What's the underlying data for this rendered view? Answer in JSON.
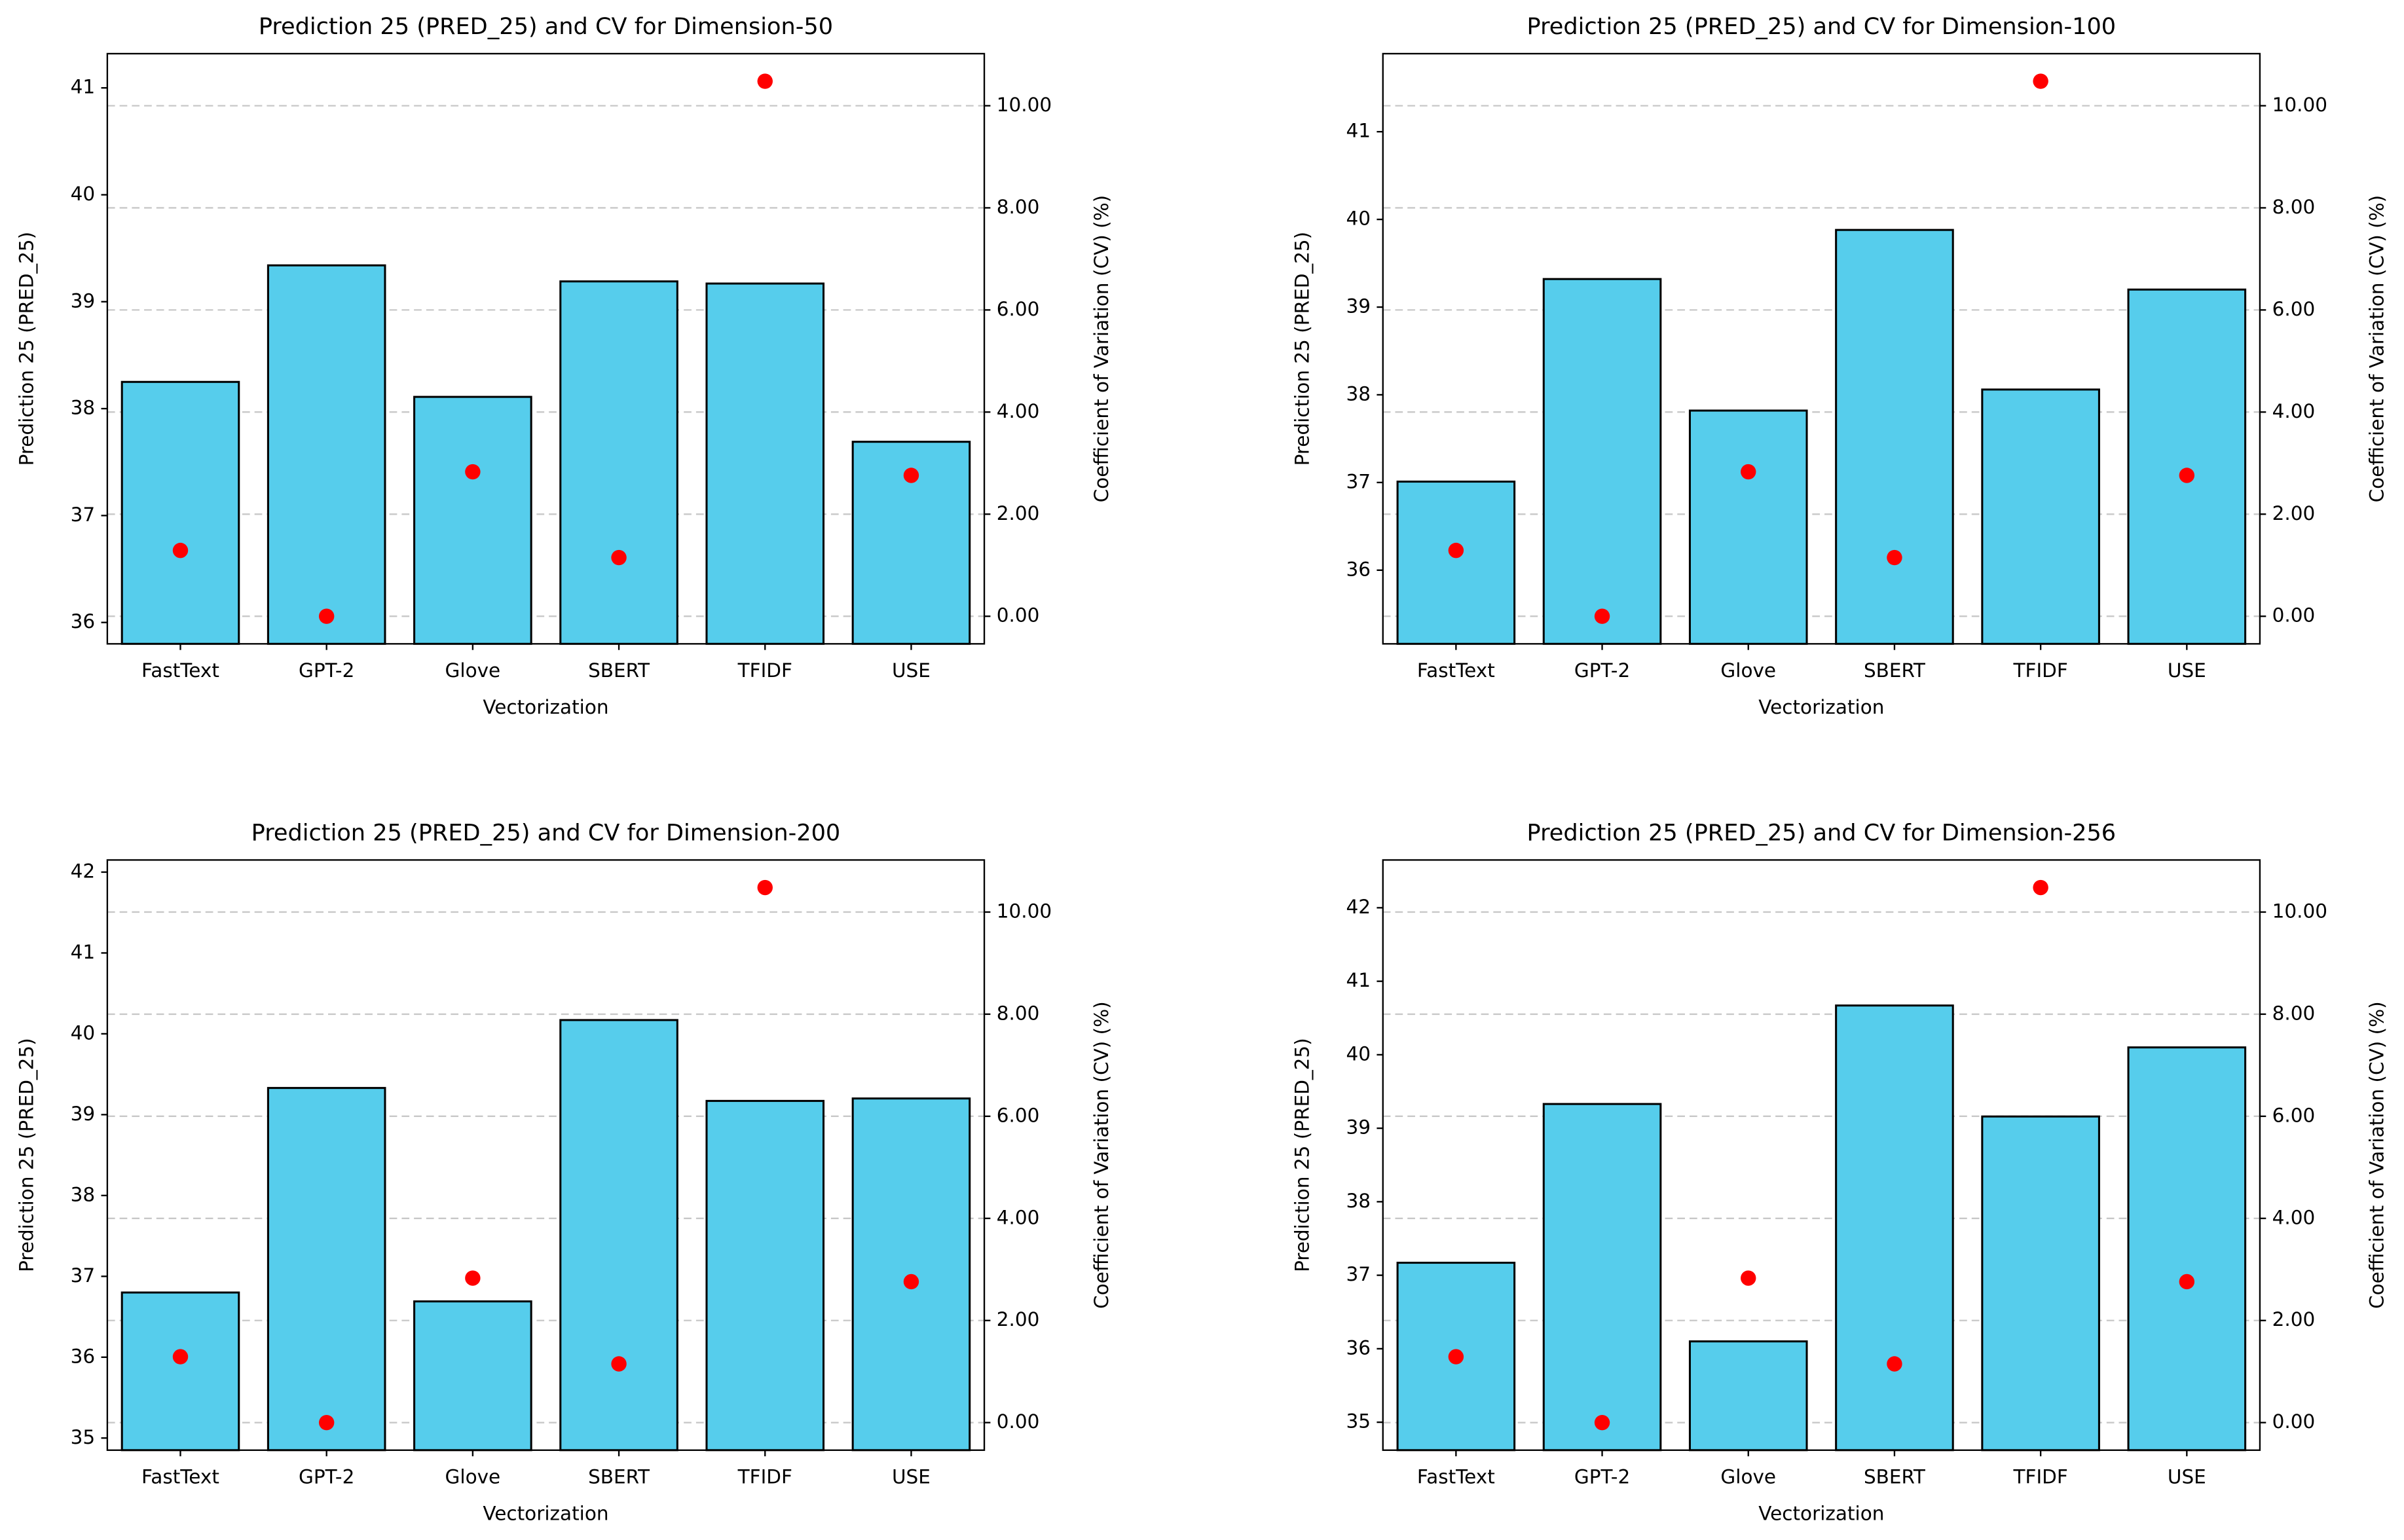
{
  "chart_data": [
    {
      "type": "bar",
      "title": "Prediction 25 (PRED_25) and CV for Dimension-50",
      "x_label": "Vectorization",
      "y_label": "Prediction 25 (PRED_25)",
      "y2_label": "Coefficient of Variation (CV) (%)",
      "categories": [
        "FastText",
        "GPT-2",
        "Glove",
        "SBERT",
        "TFIDF",
        "USE"
      ],
      "series": [
        {
          "type": "bar",
          "color": "#56cdec",
          "values": [
            38.25,
            39.34,
            38.11,
            39.19,
            39.17,
            37.69
          ]
        },
        {
          "type": "scatter",
          "color": "#ff0000",
          "axis": "y2",
          "values": [
            1.29,
            0.0,
            2.83,
            1.15,
            10.48,
            2.76
          ]
        }
      ],
      "ylim": [
        35.8,
        41.32
      ],
      "yticks": [
        36,
        37,
        38,
        39,
        40,
        41
      ],
      "y2lim": [
        -0.54,
        11.02
      ],
      "y2ticks": [
        {
          "value": 0,
          "label": "0.00"
        },
        {
          "value": 2,
          "label": "2.00"
        },
        {
          "value": 4,
          "label": "4.00"
        },
        {
          "value": 6,
          "label": "6.00"
        },
        {
          "value": 8,
          "label": "8.00"
        },
        {
          "value": 10,
          "label": "10.00"
        }
      ],
      "grid": "y2"
    },
    {
      "type": "bar",
      "title": "Prediction 25 (PRED_25) and CV for Dimension-100",
      "x_label": "Vectorization",
      "y_label": "Prediction 25 (PRED_25)",
      "y2_label": "Coefficient of Variation (CV) (%)",
      "categories": [
        "FastText",
        "GPT-2",
        "Glove",
        "SBERT",
        "TFIDF",
        "USE"
      ],
      "series": [
        {
          "type": "bar",
          "color": "#56cdec",
          "values": [
            37.01,
            39.32,
            37.82,
            39.88,
            38.06,
            39.2
          ]
        },
        {
          "type": "scatter",
          "color": "#ff0000",
          "axis": "y2",
          "values": [
            1.29,
            0.0,
            2.83,
            1.15,
            10.48,
            2.76
          ]
        }
      ],
      "ylim": [
        35.16,
        41.89
      ],
      "yticks": [
        36,
        37,
        38,
        39,
        40,
        41
      ],
      "y2lim": [
        -0.54,
        11.02
      ],
      "y2ticks": [
        {
          "value": 0,
          "label": "0.00"
        },
        {
          "value": 2,
          "label": "2.00"
        },
        {
          "value": 4,
          "label": "4.00"
        },
        {
          "value": 6,
          "label": "6.00"
        },
        {
          "value": 8,
          "label": "8.00"
        },
        {
          "value": 10,
          "label": "10.00"
        }
      ],
      "grid": "y2"
    },
    {
      "type": "bar",
      "title": "Prediction 25 (PRED_25) and CV for Dimension-200",
      "x_label": "Vectorization",
      "y_label": "Prediction 25 (PRED_25)",
      "y2_label": "Coefficient of Variation (CV) (%)",
      "categories": [
        "FastText",
        "GPT-2",
        "Glove",
        "SBERT",
        "TFIDF",
        "USE"
      ],
      "series": [
        {
          "type": "bar",
          "color": "#56cdec",
          "values": [
            36.8,
            39.33,
            36.69,
            40.17,
            39.17,
            39.2
          ]
        },
        {
          "type": "scatter",
          "color": "#ff0000",
          "axis": "y2",
          "values": [
            1.29,
            0.0,
            2.83,
            1.15,
            10.48,
            2.76
          ]
        }
      ],
      "ylim": [
        34.85,
        42.15
      ],
      "yticks": [
        35,
        36,
        37,
        38,
        39,
        40,
        41,
        42
      ],
      "y2lim": [
        -0.54,
        11.02
      ],
      "y2ticks": [
        {
          "value": 0,
          "label": "0.00"
        },
        {
          "value": 2,
          "label": "2.00"
        },
        {
          "value": 4,
          "label": "4.00"
        },
        {
          "value": 6,
          "label": "6.00"
        },
        {
          "value": 8,
          "label": "8.00"
        },
        {
          "value": 10,
          "label": "10.00"
        }
      ],
      "grid": "y2"
    },
    {
      "type": "bar",
      "title": "Prediction 25 (PRED_25) and CV for Dimension-256",
      "x_label": "Vectorization",
      "y_label": "Prediction 25 (PRED_25)",
      "y2_label": "Coefficient of Variation (CV) (%)",
      "categories": [
        "FastText",
        "GPT-2",
        "Glove",
        "SBERT",
        "TFIDF",
        "USE"
      ],
      "series": [
        {
          "type": "bar",
          "color": "#56cdec",
          "values": [
            37.17,
            39.33,
            36.1,
            40.67,
            39.16,
            40.1
          ]
        },
        {
          "type": "scatter",
          "color": "#ff0000",
          "axis": "y2",
          "values": [
            1.29,
            0.0,
            2.83,
            1.15,
            10.48,
            2.76
          ]
        }
      ],
      "ylim": [
        34.62,
        42.65
      ],
      "yticks": [
        35,
        36,
        37,
        38,
        39,
        40,
        41,
        42
      ],
      "y2lim": [
        -0.54,
        11.02
      ],
      "y2ticks": [
        {
          "value": 0,
          "label": "0.00"
        },
        {
          "value": 2,
          "label": "2.00"
        },
        {
          "value": 4,
          "label": "4.00"
        },
        {
          "value": 6,
          "label": "6.00"
        },
        {
          "value": 8,
          "label": "8.00"
        },
        {
          "value": 10,
          "label": "10.00"
        }
      ],
      "grid": "y2"
    }
  ]
}
